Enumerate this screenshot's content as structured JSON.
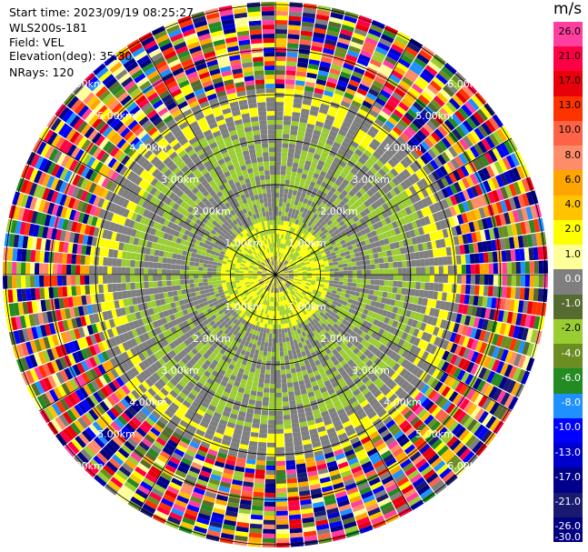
{
  "info": {
    "start_time": "Start time: 2023/09/19 08:25:27",
    "instrument": "WLS200s-181",
    "field": "Field: VEL",
    "elevation": "Elevation(deg): 35.30",
    "nrays": "NRays: 120"
  },
  "colorbar": {
    "unit": "m/s",
    "ticks": [
      "26.0",
      "21.0",
      "17.0",
      "13.0",
      "10.0",
      "8.0",
      "6.0",
      "4.0",
      "2.0",
      "1.0",
      "0.0",
      "-1.0",
      "-2.0",
      "-4.0",
      "-6.0",
      "-8.0",
      "-10.0",
      "-13.0",
      "-17.0",
      "-21.0",
      "-26.0",
      "-30.0"
    ],
    "colors": [
      "#ff3fa0",
      "#ff0044",
      "#e8000b",
      "#ff3300",
      "#ff6347",
      "#ff8c69",
      "#ffa500",
      "#ffc300",
      "#ffff00",
      "#ffff99",
      "#7f7f7f",
      "#556b2f",
      "#9acd32",
      "#6b8e23",
      "#228b22",
      "#1e90ff",
      "#0000ff",
      "#0000cd",
      "#00008b",
      "#191970",
      "#000080"
    ]
  },
  "chart_data": {
    "type": "ppi",
    "field": "VEL",
    "units": "m/s",
    "nrays": 120,
    "elevation_deg": 35.3,
    "range_rings_km": [
      1.0,
      2.0,
      3.0,
      4.0,
      5.0,
      6.0
    ],
    "range_ring_labels": [
      "1.00km",
      "2.00km",
      "3.00km",
      "4.00km",
      "5.00km",
      "6.00km"
    ],
    "colormap": [
      "#ff3fa0",
      "#ff0044",
      "#e8000b",
      "#ff3300",
      "#ff6347",
      "#ff8c69",
      "#ffa500",
      "#ffc300",
      "#ffff00",
      "#ffff99",
      "#7f7f7f",
      "#556b2f",
      "#9acd32",
      "#6b8e23",
      "#228b22",
      "#1e90ff",
      "#0000ff",
      "#0000cd",
      "#00008b",
      "#191970",
      "#000080"
    ]
  }
}
